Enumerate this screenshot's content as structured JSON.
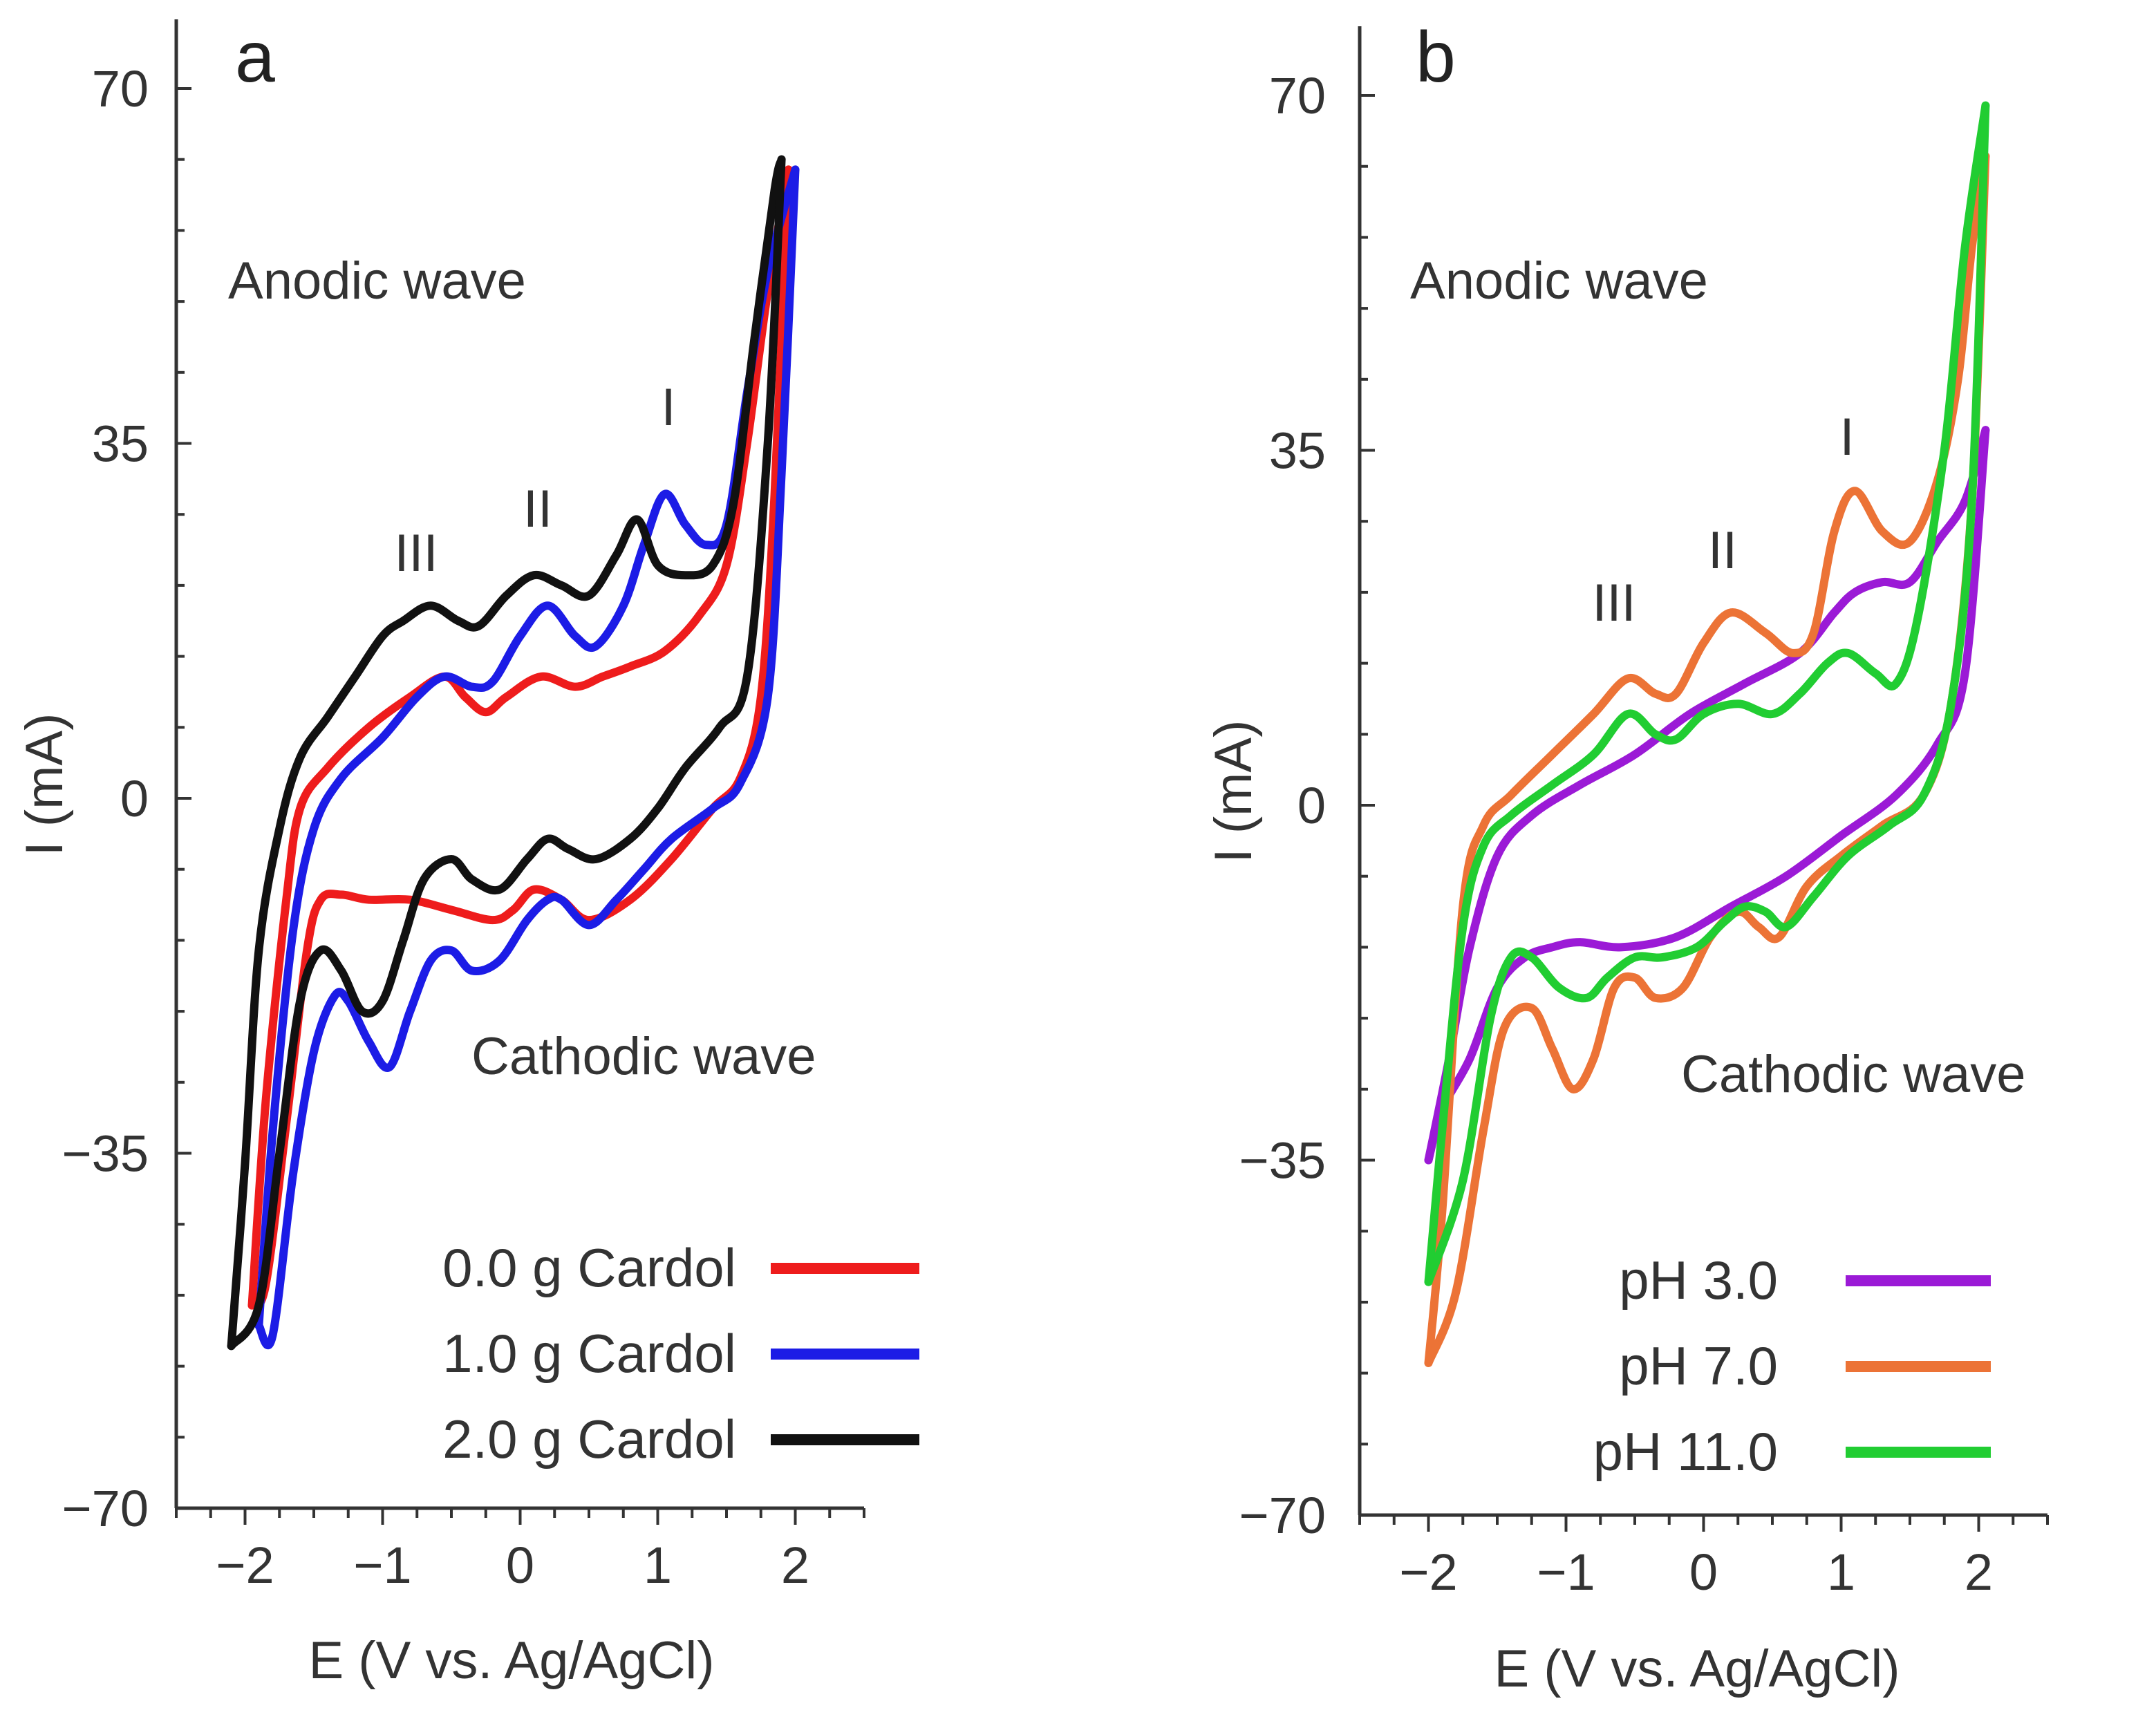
{
  "chart_data": [
    {
      "type": "line",
      "panel_label": "a",
      "xlabel": "E (V vs. Ag/AgCl)",
      "ylabel": "I (mA)",
      "xlim": [
        -2.5,
        2.5
      ],
      "ylim": [
        -70,
        70
      ],
      "xticks": [
        -2,
        -1,
        0,
        1,
        2
      ],
      "yticks": [
        70,
        35,
        0,
        -35,
        -70
      ],
      "xtick_labels": [
        "−2",
        "−1",
        "0",
        "1",
        "2"
      ],
      "ytick_labels": [
        "70",
        "35",
        "0",
        "−35",
        "−70"
      ],
      "annotations": {
        "anodic": "Anodic wave",
        "cathodic": "Cathodic wave",
        "peak1": "I",
        "peak2": "II",
        "peak3": "III"
      },
      "legend_position": "bottom-right",
      "series": [
        {
          "name": "0.0 g Cardol",
          "color": "#ee1c1c",
          "upper": [
            [
              -1.95,
              -50
            ],
            [
              -1.85,
              -30
            ],
            [
              -1.7,
              -10
            ],
            [
              -1.6,
              -1
            ],
            [
              -1.4,
              3
            ],
            [
              -1.1,
              7
            ],
            [
              -0.8,
              10
            ],
            [
              -0.55,
              12
            ],
            [
              -0.4,
              10
            ],
            [
              -0.25,
              8.5
            ],
            [
              -0.1,
              10
            ],
            [
              0.15,
              12
            ],
            [
              0.4,
              11
            ],
            [
              0.6,
              12
            ],
            [
              0.8,
              13
            ],
            [
              1.05,
              14.5
            ],
            [
              1.3,
              18
            ],
            [
              1.5,
              23
            ],
            [
              1.65,
              35
            ],
            [
              1.8,
              50
            ],
            [
              1.95,
              62
            ]
          ],
          "lower": [
            [
              1.95,
              62
            ],
            [
              1.85,
              30
            ],
            [
              1.75,
              10
            ],
            [
              1.6,
              2
            ],
            [
              1.4,
              -1
            ],
            [
              1.1,
              -6
            ],
            [
              0.8,
              -10
            ],
            [
              0.5,
              -12
            ],
            [
              0.3,
              -10
            ],
            [
              0.1,
              -9
            ],
            [
              -0.05,
              -11
            ],
            [
              -0.2,
              -12
            ],
            [
              -0.5,
              -11
            ],
            [
              -0.8,
              -10
            ],
            [
              -1.1,
              -10
            ],
            [
              -1.3,
              -9.5
            ],
            [
              -1.45,
              -10
            ],
            [
              -1.55,
              -15
            ],
            [
              -1.7,
              -32
            ],
            [
              -1.85,
              -48
            ],
            [
              -1.95,
              -50
            ]
          ]
        },
        {
          "name": "1.0 g Cardol",
          "color": "#1c1ce6",
          "upper": [
            [
              -1.9,
              -52
            ],
            [
              -1.8,
              -33
            ],
            [
              -1.65,
              -13
            ],
            [
              -1.5,
              -3
            ],
            [
              -1.3,
              2
            ],
            [
              -1.0,
              6
            ],
            [
              -0.75,
              10
            ],
            [
              -0.55,
              12
            ],
            [
              -0.35,
              11
            ],
            [
              -0.2,
              11.5
            ],
            [
              0,
              16
            ],
            [
              0.2,
              19
            ],
            [
              0.4,
              16
            ],
            [
              0.55,
              15
            ],
            [
              0.75,
              19
            ],
            [
              0.9,
              25
            ],
            [
              1.05,
              30
            ],
            [
              1.2,
              27
            ],
            [
              1.35,
              25
            ],
            [
              1.5,
              27
            ],
            [
              1.65,
              40
            ],
            [
              1.8,
              52
            ],
            [
              2.0,
              62
            ]
          ],
          "lower": [
            [
              2.0,
              62
            ],
            [
              1.9,
              32
            ],
            [
              1.8,
              10
            ],
            [
              1.6,
              1.5
            ],
            [
              1.4,
              -1
            ],
            [
              1.1,
              -4
            ],
            [
              0.9,
              -7
            ],
            [
              0.7,
              -10
            ],
            [
              0.5,
              -12.5
            ],
            [
              0.3,
              -10
            ],
            [
              0.2,
              -10
            ],
            [
              0.05,
              -12
            ],
            [
              -0.15,
              -16
            ],
            [
              -0.35,
              -17
            ],
            [
              -0.5,
              -15
            ],
            [
              -0.65,
              -16
            ],
            [
              -0.8,
              -21
            ],
            [
              -0.95,
              -26.5
            ],
            [
              -1.1,
              -24
            ],
            [
              -1.25,
              -20
            ],
            [
              -1.35,
              -19.5
            ],
            [
              -1.5,
              -25
            ],
            [
              -1.65,
              -37
            ],
            [
              -1.8,
              -53
            ],
            [
              -1.9,
              -52
            ]
          ]
        },
        {
          "name": "2.0 g Cardol",
          "color": "#111111",
          "upper": [
            [
              -2.1,
              -54
            ],
            [
              -2.0,
              -36
            ],
            [
              -1.9,
              -15
            ],
            [
              -1.75,
              -3
            ],
            [
              -1.6,
              4
            ],
            [
              -1.4,
              8
            ],
            [
              -1.2,
              12
            ],
            [
              -1.0,
              16
            ],
            [
              -0.85,
              17.5
            ],
            [
              -0.65,
              19
            ],
            [
              -0.45,
              17.5
            ],
            [
              -0.3,
              17
            ],
            [
              -0.1,
              20
            ],
            [
              0.1,
              22
            ],
            [
              0.3,
              21
            ],
            [
              0.5,
              20
            ],
            [
              0.7,
              24
            ],
            [
              0.85,
              27.5
            ],
            [
              1.0,
              23
            ],
            [
              1.2,
              22
            ],
            [
              1.4,
              23
            ],
            [
              1.55,
              29
            ],
            [
              1.7,
              45
            ],
            [
              1.85,
              60
            ],
            [
              1.9,
              63
            ]
          ],
          "lower": [
            [
              1.9,
              63
            ],
            [
              1.8,
              35
            ],
            [
              1.65,
              12
            ],
            [
              1.45,
              7
            ],
            [
              1.2,
              3
            ],
            [
              1.0,
              -1
            ],
            [
              0.8,
              -4
            ],
            [
              0.55,
              -6
            ],
            [
              0.35,
              -5
            ],
            [
              0.2,
              -4
            ],
            [
              0.05,
              -6
            ],
            [
              -0.15,
              -9
            ],
            [
              -0.35,
              -8
            ],
            [
              -0.5,
              -6
            ],
            [
              -0.7,
              -8
            ],
            [
              -0.85,
              -14
            ],
            [
              -1.0,
              -20
            ],
            [
              -1.15,
              -21
            ],
            [
              -1.3,
              -17
            ],
            [
              -1.45,
              -15
            ],
            [
              -1.6,
              -20
            ],
            [
              -1.75,
              -35
            ],
            [
              -1.9,
              -50
            ],
            [
              -2.1,
              -54
            ]
          ]
        }
      ]
    },
    {
      "type": "line",
      "panel_label": "b",
      "xlabel": "E (V vs. Ag/AgCl)",
      "ylabel": "I (mA)",
      "xlim": [
        -2.5,
        2.5
      ],
      "ylim": [
        -70,
        70
      ],
      "xticks": [
        -2,
        -1,
        0,
        1,
        2
      ],
      "yticks": [
        70,
        35,
        0,
        -35,
        -70
      ],
      "xtick_labels": [
        "−2",
        "−1",
        "0",
        "1",
        "2"
      ],
      "ytick_labels": [
        "70",
        "35",
        "0",
        "−35",
        "−70"
      ],
      "annotations": {
        "anodic": "Anodic wave",
        "cathodic": "Cathodic wave",
        "peak1": "I",
        "peak2": "II",
        "peak3": "III"
      },
      "legend_position": "bottom-right",
      "series": [
        {
          "name": "pH 3.0",
          "color": "#9b1ad6",
          "upper": [
            [
              -2.0,
              -35
            ],
            [
              -1.85,
              -25
            ],
            [
              -1.7,
              -14
            ],
            [
              -1.5,
              -5
            ],
            [
              -1.25,
              -1
            ],
            [
              -0.9,
              2
            ],
            [
              -0.5,
              5
            ],
            [
              -0.1,
              9
            ],
            [
              0.3,
              12
            ],
            [
              0.7,
              15
            ],
            [
              0.95,
              19
            ],
            [
              1.1,
              21
            ],
            [
              1.3,
              22
            ],
            [
              1.5,
              22
            ],
            [
              1.7,
              26
            ],
            [
              1.9,
              30
            ],
            [
              2.05,
              37
            ]
          ],
          "lower": [
            [
              2.05,
              37
            ],
            [
              1.9,
              13
            ],
            [
              1.7,
              6
            ],
            [
              1.4,
              1
            ],
            [
              1.0,
              -3
            ],
            [
              0.6,
              -7
            ],
            [
              0.2,
              -10
            ],
            [
              -0.2,
              -13
            ],
            [
              -0.6,
              -14
            ],
            [
              -0.9,
              -13.5
            ],
            [
              -1.1,
              -14
            ],
            [
              -1.3,
              -15
            ],
            [
              -1.5,
              -18
            ],
            [
              -1.7,
              -25
            ],
            [
              -1.9,
              -30
            ],
            [
              -2.0,
              -35
            ]
          ]
        },
        {
          "name": "pH 7.0",
          "color": "#ec7336",
          "upper": [
            [
              -2.0,
              -55
            ],
            [
              -1.9,
              -40
            ],
            [
              -1.75,
              -10
            ],
            [
              -1.6,
              -2
            ],
            [
              -1.4,
              1
            ],
            [
              -1.1,
              5
            ],
            [
              -0.8,
              9
            ],
            [
              -0.55,
              12.5
            ],
            [
              -0.35,
              11
            ],
            [
              -0.2,
              11
            ],
            [
              0,
              16
            ],
            [
              0.2,
              19
            ],
            [
              0.45,
              17
            ],
            [
              0.65,
              15
            ],
            [
              0.8,
              17
            ],
            [
              0.95,
              27
            ],
            [
              1.1,
              31
            ],
            [
              1.3,
              27
            ],
            [
              1.5,
              26
            ],
            [
              1.7,
              32
            ],
            [
              1.85,
              42
            ],
            [
              1.95,
              55
            ],
            [
              2.05,
              64
            ]
          ],
          "lower": [
            [
              2.05,
              64
            ],
            [
              1.95,
              30
            ],
            [
              1.8,
              10
            ],
            [
              1.6,
              1
            ],
            [
              1.3,
              -2
            ],
            [
              1.0,
              -5
            ],
            [
              0.75,
              -8
            ],
            [
              0.55,
              -13
            ],
            [
              0.4,
              -12
            ],
            [
              0.25,
              -10.5
            ],
            [
              0.05,
              -13
            ],
            [
              -0.15,
              -18
            ],
            [
              -0.35,
              -19
            ],
            [
              -0.5,
              -17
            ],
            [
              -0.65,
              -18
            ],
            [
              -0.8,
              -25
            ],
            [
              -0.95,
              -28
            ],
            [
              -1.1,
              -24
            ],
            [
              -1.25,
              -20
            ],
            [
              -1.45,
              -22
            ],
            [
              -1.6,
              -32
            ],
            [
              -1.8,
              -48
            ],
            [
              -2.0,
              -55
            ]
          ]
        },
        {
          "name": "pH 11.0",
          "color": "#21cd32",
          "upper": [
            [
              -2.0,
              -47
            ],
            [
              -1.9,
              -32
            ],
            [
              -1.75,
              -12
            ],
            [
              -1.6,
              -4
            ],
            [
              -1.4,
              -1
            ],
            [
              -1.1,
              2
            ],
            [
              -0.8,
              5
            ],
            [
              -0.55,
              9
            ],
            [
              -0.35,
              7
            ],
            [
              -0.2,
              6.5
            ],
            [
              0,
              9
            ],
            [
              0.25,
              10
            ],
            [
              0.5,
              9
            ],
            [
              0.7,
              11
            ],
            [
              0.9,
              14
            ],
            [
              1.05,
              15
            ],
            [
              1.25,
              13
            ],
            [
              1.4,
              12
            ],
            [
              1.55,
              18
            ],
            [
              1.75,
              35
            ],
            [
              1.9,
              55
            ],
            [
              2.05,
              69
            ]
          ],
          "lower": [
            [
              2.05,
              69
            ],
            [
              1.95,
              30
            ],
            [
              1.8,
              10
            ],
            [
              1.6,
              1
            ],
            [
              1.35,
              -2
            ],
            [
              1.05,
              -5
            ],
            [
              0.8,
              -9
            ],
            [
              0.6,
              -12
            ],
            [
              0.45,
              -10.5
            ],
            [
              0.3,
              -10
            ],
            [
              0.15,
              -11.5
            ],
            [
              -0.05,
              -14
            ],
            [
              -0.3,
              -15
            ],
            [
              -0.5,
              -15
            ],
            [
              -0.7,
              -17
            ],
            [
              -0.85,
              -19
            ],
            [
              -1.05,
              -18
            ],
            [
              -1.25,
              -15
            ],
            [
              -1.4,
              -15
            ],
            [
              -1.55,
              -21
            ],
            [
              -1.75,
              -37
            ],
            [
              -2.0,
              -47
            ]
          ]
        }
      ]
    }
  ]
}
